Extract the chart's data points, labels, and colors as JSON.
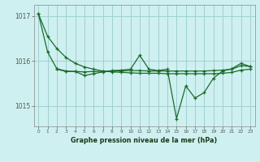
{
  "background_color": "#cff0f0",
  "plot_bg_color": "#cff0f0",
  "grid_color": "#a0d0d0",
  "line_color": "#1a6b2a",
  "xlabel": "Graphe pression niveau de la mer (hPa)",
  "ylim": [
    1014.55,
    1017.25
  ],
  "xlim": [
    -0.5,
    23.5
  ],
  "yticks": [
    1015,
    1016,
    1017
  ],
  "xticks": [
    0,
    1,
    2,
    3,
    4,
    5,
    6,
    7,
    8,
    9,
    10,
    11,
    12,
    13,
    14,
    15,
    16,
    17,
    18,
    19,
    20,
    21,
    22,
    23
  ],
  "sA_x": [
    0,
    1,
    2,
    3,
    4,
    5,
    6,
    7,
    8,
    9,
    10,
    11,
    12,
    13,
    14,
    15,
    16,
    17,
    18,
    19,
    20,
    21,
    22,
    23
  ],
  "sA_y": [
    1017.05,
    1016.55,
    1016.28,
    1016.08,
    1015.95,
    1015.87,
    1015.82,
    1015.78,
    1015.76,
    1015.75,
    1015.74,
    1015.73,
    1015.73,
    1015.73,
    1015.72,
    1015.72,
    1015.72,
    1015.72,
    1015.72,
    1015.72,
    1015.73,
    1015.75,
    1015.8,
    1015.82
  ],
  "sB_x": [
    0,
    1,
    2,
    3,
    4,
    5,
    6,
    7,
    8,
    9,
    10,
    11,
    12,
    13,
    14,
    15,
    16,
    17,
    18,
    19,
    20,
    21,
    22,
    23
  ],
  "sB_y": [
    1017.05,
    1016.2,
    1015.83,
    1015.78,
    1015.77,
    1015.76,
    1015.77,
    1015.77,
    1015.78,
    1015.78,
    1015.79,
    1015.79,
    1015.78,
    1015.78,
    1015.78,
    1015.78,
    1015.78,
    1015.78,
    1015.78,
    1015.79,
    1015.8,
    1015.82,
    1015.9,
    1015.88
  ],
  "sC_x": [
    2,
    3,
    4,
    5,
    6,
    7,
    8,
    9,
    10,
    11,
    12,
    13,
    14,
    15,
    16,
    17,
    18,
    19,
    20,
    21,
    22,
    23
  ],
  "sC_y": [
    1015.82,
    1015.77,
    1015.77,
    1015.68,
    1015.72,
    1015.76,
    1015.79,
    1015.8,
    1015.82,
    1016.13,
    1015.82,
    1015.79,
    1015.82,
    1014.72,
    1015.45,
    1015.18,
    1015.3,
    1015.62,
    1015.78,
    1015.83,
    1015.95,
    1015.88
  ]
}
